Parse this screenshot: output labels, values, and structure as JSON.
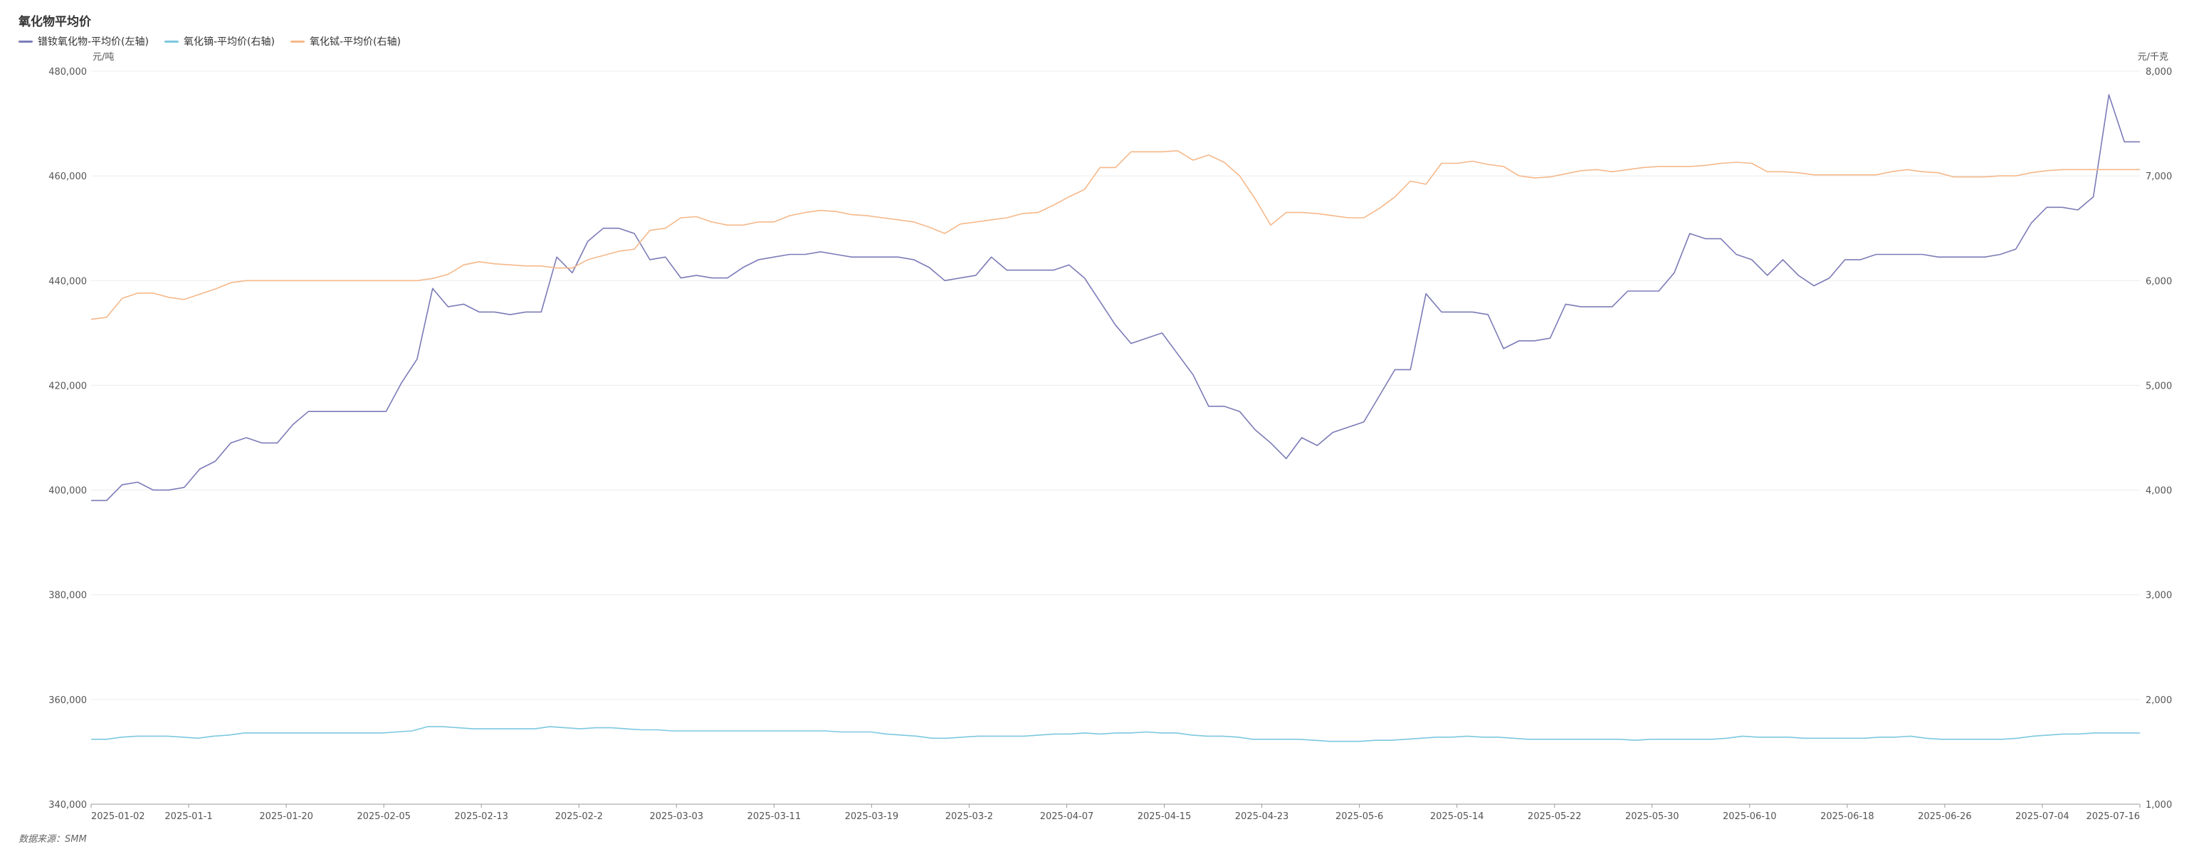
{
  "chart_data": {
    "type": "line",
    "title": "氧化物平均价",
    "legend": [
      {
        "label": "镨钕氧化物-平均价(左轴)",
        "color": "#7b7bb8"
      },
      {
        "label": "氧化镝-平均价(右轴)",
        "color": "#7cc8e0"
      },
      {
        "label": "氧化铽-平均价(右轴)",
        "color": "#f5b88a"
      }
    ],
    "left_axis": {
      "unit": "元/吨",
      "min": 340000,
      "max": 480000,
      "ticks": [
        "480,000",
        "460,000",
        "440,000",
        "420,000",
        "400,000",
        "380,000",
        "360,000",
        "340,000"
      ]
    },
    "right_axis": {
      "unit": "元/千克",
      "min": 1000,
      "max": 8000,
      "ticks": [
        "8,000",
        "7,000",
        "6,000",
        "5,000",
        "4,000",
        "3,000",
        "2,000",
        "1,000"
      ]
    },
    "x_ticks": [
      "2025-01-02",
      "2025-01-1",
      "2025-01-20",
      "2025-02-05",
      "2025-02-13",
      "2025-02-2",
      "2025-03-03",
      "2025-03-11",
      "2025-03-19",
      "2025-03-2",
      "2025-04-07",
      "2025-04-15",
      "2025-04-23",
      "2025-05-6",
      "2025-05-14",
      "2025-05-22",
      "2025-05-30",
      "2025-06-10",
      "2025-06-18",
      "2025-06-26",
      "2025-07-04",
      "2025-07-16"
    ],
    "grid": true,
    "legend_position": "top-left",
    "series": [
      {
        "name": "镨钕氧化物-平均价(左轴)",
        "axis": "left",
        "color": "#7b7bb8",
        "values": [
          398000,
          398000,
          401000,
          401500,
          400000,
          400000,
          400500,
          404000,
          405500,
          409000,
          410000,
          409000,
          409000,
          412500,
          415000,
          415000,
          415000,
          415000,
          415000,
          415000,
          420500,
          425000,
          438500,
          435000,
          435500,
          434000,
          434000,
          433500,
          434000,
          434000,
          444500,
          441500,
          447500,
          450000,
          450000,
          449000,
          444000,
          444500,
          440500,
          441000,
          440500,
          440500,
          442500,
          444000,
          444500,
          445000,
          445000,
          445500,
          445000,
          444500,
          444500,
          444500,
          444500,
          444000,
          442500,
          440000,
          440500,
          441000,
          444500,
          442000,
          442000,
          442000,
          442000,
          443000,
          440500,
          436000,
          431500,
          428000,
          429000,
          430000,
          426000,
          422000,
          416000,
          416000,
          415000,
          411500,
          409000,
          406000,
          410000,
          408500,
          411000,
          412000,
          413000,
          418000,
          423000,
          423000,
          437500,
          434000,
          434000,
          434000,
          433500,
          427000,
          428500,
          428500,
          429000,
          435500,
          435000,
          435000,
          435000,
          438000,
          438000,
          438000,
          441500,
          449000,
          448000,
          448000,
          445000,
          444000,
          441000,
          444000,
          441000,
          439000,
          440500,
          444000,
          444000,
          445000,
          445000,
          445000,
          445000,
          444500,
          444500,
          444500,
          444500,
          445000,
          446000,
          451000,
          454000,
          454000,
          453500,
          456000,
          475500,
          466500,
          466500
        ]
      },
      {
        "name": "氧化镝-平均价(右轴)",
        "axis": "right",
        "color": "#7cc8e0",
        "values": [
          1620,
          1620,
          1640,
          1650,
          1650,
          1650,
          1640,
          1630,
          1650,
          1660,
          1680,
          1680,
          1680,
          1680,
          1680,
          1680,
          1680,
          1680,
          1680,
          1680,
          1690,
          1700,
          1740,
          1740,
          1730,
          1720,
          1720,
          1720,
          1720,
          1720,
          1740,
          1730,
          1720,
          1730,
          1730,
          1720,
          1710,
          1710,
          1700,
          1700,
          1700,
          1700,
          1700,
          1700,
          1700,
          1700,
          1700,
          1700,
          1700,
          1690,
          1690,
          1690,
          1670,
          1660,
          1650,
          1630,
          1630,
          1640,
          1650,
          1650,
          1650,
          1650,
          1660,
          1670,
          1670,
          1680,
          1670,
          1680,
          1680,
          1690,
          1680,
          1680,
          1660,
          1650,
          1650,
          1640,
          1620,
          1620,
          1620,
          1620,
          1610,
          1600,
          1600,
          1600,
          1610,
          1610,
          1620,
          1630,
          1640,
          1640,
          1650,
          1640,
          1640,
          1630,
          1620,
          1620,
          1620,
          1620,
          1620,
          1620,
          1620,
          1610,
          1620,
          1620,
          1620,
          1620,
          1620,
          1630,
          1650,
          1640,
          1640,
          1640,
          1630,
          1630,
          1630,
          1630,
          1630,
          1640,
          1640,
          1650,
          1630,
          1620,
          1620,
          1620,
          1620,
          1620,
          1630,
          1650,
          1660,
          1670,
          1670,
          1680,
          1680,
          1680,
          1680
        ]
      },
      {
        "name": "氧化铽-平均价(右轴)",
        "axis": "right",
        "color": "#f5b88a",
        "values": [
          5630,
          5650,
          5830,
          5880,
          5880,
          5840,
          5820,
          5870,
          5920,
          5980,
          6000,
          6000,
          6000,
          6000,
          6000,
          6000,
          6000,
          6000,
          6000,
          6000,
          6000,
          6000,
          6020,
          6060,
          6150,
          6180,
          6160,
          6150,
          6140,
          6140,
          6120,
          6120,
          6200,
          6240,
          6280,
          6300,
          6480,
          6500,
          6600,
          6610,
          6560,
          6530,
          6530,
          6560,
          6560,
          6620,
          6650,
          6670,
          6660,
          6630,
          6620,
          6600,
          6580,
          6560,
          6510,
          6450,
          6540,
          6560,
          6580,
          6600,
          6640,
          6650,
          6720,
          6800,
          6870,
          7080,
          7080,
          7230,
          7230,
          7230,
          7240,
          7150,
          7200,
          7130,
          7000,
          6780,
          6530,
          6650,
          6650,
          6640,
          6620,
          6600,
          6600,
          6690,
          6800,
          6950,
          6920,
          7120,
          7120,
          7140,
          7110,
          7090,
          7000,
          6980,
          6990,
          7020,
          7050,
          7060,
          7040,
          7060,
          7080,
          7090,
          7090,
          7090,
          7100,
          7120,
          7130,
          7120,
          7040,
          7040,
          7030,
          7010,
          7010,
          7010,
          7010,
          7010,
          7040,
          7060,
          7040,
          7030,
          6990,
          6990,
          6990,
          7000,
          7000,
          7030,
          7050,
          7060,
          7060,
          7060,
          7060,
          7060,
          7060
        ]
      }
    ]
  },
  "source": "数据来源：SMM"
}
